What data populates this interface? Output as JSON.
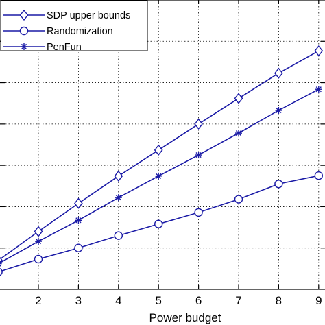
{
  "chart_data": {
    "type": "line",
    "xlabel": "Power budget",
    "ylabel": "",
    "title": "",
    "x": [
      1,
      2,
      3,
      4,
      5,
      6,
      7,
      8,
      9
    ],
    "xlim": [
      1,
      9.1
    ],
    "ylim": [
      0,
      7
    ],
    "xticks": [
      2,
      3,
      4,
      5,
      6,
      7,
      8,
      9
    ],
    "xtick_labels": [
      "2",
      "3",
      "4",
      "5",
      "6",
      "7",
      "8",
      "9"
    ],
    "yticks": [
      1,
      2,
      3,
      4,
      5,
      6
    ],
    "grid": true,
    "legend_position": "top-left",
    "series": [
      {
        "name": "SDP upper bounds",
        "marker": "diamond",
        "values": [
          0.7,
          1.4,
          2.08,
          2.74,
          3.37,
          4.0,
          4.62,
          5.23,
          5.77
        ]
      },
      {
        "name": "Randomization",
        "marker": "circle",
        "values": [
          0.42,
          0.73,
          1.0,
          1.3,
          1.58,
          1.86,
          2.18,
          2.55,
          2.75
        ]
      },
      {
        "name": "PenFun",
        "marker": "star",
        "values": [
          0.62,
          1.16,
          1.67,
          2.22,
          2.74,
          3.25,
          3.78,
          4.33,
          4.84
        ]
      }
    ],
    "line_color": "#1a1aa6"
  }
}
